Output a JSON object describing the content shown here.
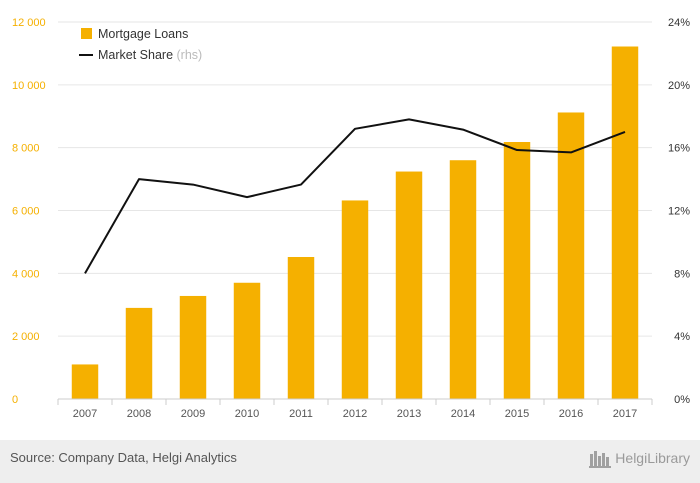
{
  "chart_data": {
    "type": "bar+line",
    "categories": [
      "2007",
      "2008",
      "2009",
      "2010",
      "2011",
      "2012",
      "2013",
      "2014",
      "2015",
      "2016",
      "2017"
    ],
    "series": [
      {
        "name": "Mortgage Loans",
        "type": "bar",
        "axis": "left",
        "color": "#f5b000",
        "values": [
          1100,
          2900,
          3280,
          3700,
          4520,
          6320,
          7240,
          7600,
          8180,
          9120,
          11220
        ]
      },
      {
        "name": "Market Share",
        "type": "line",
        "axis": "right",
        "color": "#111111",
        "values": [
          8.0,
          14.0,
          13.65,
          12.85,
          13.65,
          17.2,
          17.8,
          17.15,
          15.85,
          15.7,
          17.0
        ]
      }
    ],
    "legend": {
      "position": "top-left",
      "note": "(rhs)"
    },
    "yleft": {
      "ticks": [
        "0",
        "2 000",
        "4 000",
        "6 000",
        "8 000",
        "10 000",
        "12 000"
      ],
      "lim": [
        0,
        12000
      ]
    },
    "yright": {
      "ticks": [
        "0%",
        "4%",
        "8%",
        "12%",
        "16%",
        "20%",
        "24%"
      ],
      "lim": [
        0,
        24
      ]
    },
    "grid": true
  },
  "footer": {
    "source": "Source: Company Data, Helgi Analytics",
    "logo_text": "HelgiLibrary"
  }
}
